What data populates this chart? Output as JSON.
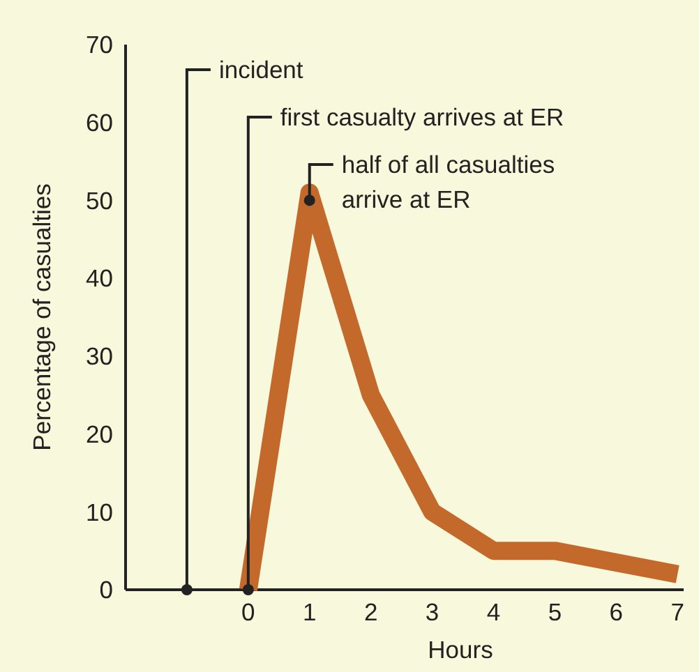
{
  "chart_data": {
    "type": "line",
    "xlabel": "Hours",
    "ylabel": "Percentage of casualties",
    "x": [
      0,
      1,
      2,
      3,
      4,
      5,
      7
    ],
    "series": [
      {
        "color": "#c4692c",
        "values": [
          0,
          51,
          25,
          10,
          5,
          5,
          2
        ]
      }
    ],
    "xlim": [
      -2,
      7.1
    ],
    "xticks": [
      0,
      1,
      2,
      3,
      4,
      5,
      6,
      7
    ],
    "ylim": [
      0,
      70
    ],
    "yticks": [
      0,
      10,
      20,
      30,
      40,
      50,
      60,
      70
    ],
    "grid": false,
    "marker": "none",
    "line_style": "solid",
    "annotations": [
      {
        "text": "incident",
        "x": -1,
        "y": 0
      },
      {
        "text": "first casualty arrives at ER",
        "x": 0,
        "y": 0
      },
      {
        "text": "half of all casualties\narrive at ER",
        "x": 1,
        "y": 50
      }
    ]
  }
}
